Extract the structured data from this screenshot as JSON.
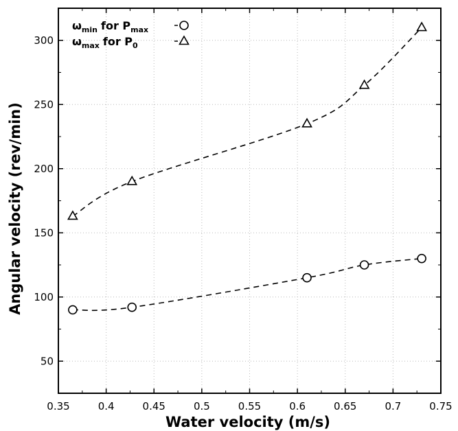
{
  "chart_data": {
    "type": "line",
    "title": "",
    "xlabel": "Water velocity (m/s)",
    "ylabel": "Angular velocity (rev/min)",
    "xlim": [
      0.35,
      0.75
    ],
    "ylim": [
      25,
      325
    ],
    "x_ticks": [
      "0.35",
      "0.4",
      "0.45",
      "0.5",
      "0.55",
      "0.6",
      "0.65",
      "0.7",
      "0.75"
    ],
    "y_ticks": [
      "50",
      "100",
      "150",
      "200",
      "250",
      "300"
    ],
    "grid": true,
    "legend_position": "top-left",
    "series": [
      {
        "symbol": "ω",
        "subscript": "min",
        "for_text": "for P",
        "for_sub": "max",
        "marker": "circle",
        "x": [
          0.365,
          0.427,
          0.61,
          0.67,
          0.73
        ],
        "y": [
          90,
          92,
          115,
          125,
          130
        ]
      },
      {
        "symbol": "ω",
        "subscript": "max",
        "for_text": "for P",
        "for_sub": "0",
        "marker": "triangle",
        "x": [
          0.365,
          0.427,
          0.61,
          0.67,
          0.73
        ],
        "y": [
          163,
          190,
          235,
          265,
          310
        ]
      }
    ]
  }
}
